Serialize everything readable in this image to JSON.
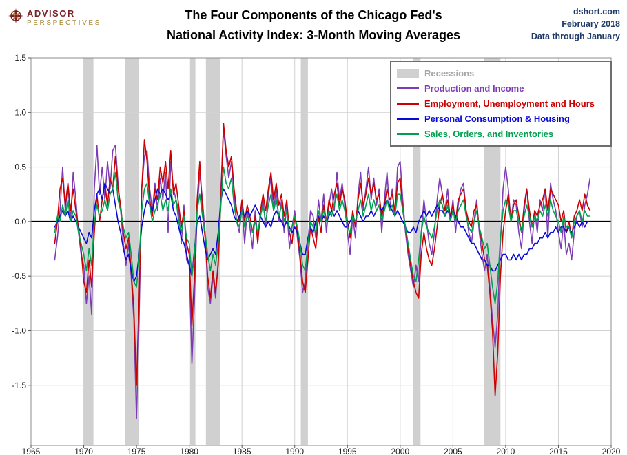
{
  "header": {
    "logo_line1": "ADVISOR",
    "logo_line2": "PERSPECTIVES",
    "title_line1": "The Four Components of the Chicago Fed's",
    "title_line2": "National Activity Index: 3-Month Moving Averages",
    "source": "dshort.com",
    "date": "February 2018",
    "note": "Data through January"
  },
  "colors": {
    "purple": "#7d3cb5",
    "red": "#cc0000",
    "blue": "#0a0ad8",
    "green": "#00a050",
    "recession": "#d0d0d0",
    "grid": "#d2d2d2",
    "axis_border": "#8c8c8c",
    "zero_line": "#000000",
    "header_blue": "#1f3a68",
    "legend_gray": "#a6a6a6",
    "logo_red": "#7a1f23",
    "logo_gold": "#a5873a"
  },
  "legend": {
    "recessions_label": "Recessions"
  },
  "chart_data": {
    "type": "line",
    "title": "The Four Components of the Chicago Fed's National Activity Index: 3-Month Moving Averages",
    "xlabel": "",
    "ylabel": "",
    "xlim": [
      1965,
      2020
    ],
    "ylim": [
      -2.05,
      1.5
    ],
    "x_ticks": [
      1965,
      1970,
      1975,
      1980,
      1985,
      1990,
      1995,
      2000,
      2005,
      2010,
      2015,
      2020
    ],
    "y_ticks": [
      1.5,
      1.0,
      0.5,
      0.0,
      -0.5,
      -1.0,
      -1.5
    ],
    "grid": true,
    "legend_position": "top-right",
    "x_start": 1967.25,
    "x_step": 0.25,
    "x_end": 2018.0,
    "recessions": [
      [
        1969.92,
        1970.92
      ],
      [
        1973.92,
        1975.25
      ],
      [
        1980.08,
        1980.58
      ],
      [
        1981.58,
        1982.92
      ],
      [
        1990.58,
        1991.25
      ],
      [
        2001.25,
        2001.92
      ],
      [
        2007.92,
        2009.5
      ]
    ],
    "series": [
      {
        "name": "Production and Income",
        "color": "#7d3cb5",
        "values": [
          -0.35,
          -0.15,
          0.1,
          0.5,
          0.1,
          0.35,
          0.0,
          0.45,
          0.2,
          -0.1,
          -0.3,
          -0.4,
          -0.75,
          -0.5,
          -0.85,
          0.3,
          0.7,
          0.25,
          0.5,
          0.2,
          0.55,
          0.3,
          0.65,
          0.7,
          0.35,
          0.1,
          -0.2,
          -0.4,
          -0.2,
          -0.5,
          -0.9,
          -1.8,
          -0.9,
          0.3,
          0.6,
          0.65,
          0.3,
          0.1,
          0.35,
          0.1,
          0.4,
          0.2,
          0.45,
          -0.1,
          0.55,
          0.3,
          0.2,
          0.1,
          -0.2,
          0.15,
          -0.35,
          -0.4,
          -1.3,
          -0.7,
          0.1,
          0.45,
          0.2,
          -0.1,
          -0.6,
          -0.75,
          -0.5,
          -0.7,
          -0.35,
          0.3,
          0.85,
          0.6,
          0.4,
          0.55,
          0.25,
          0.0,
          -0.1,
          0.15,
          -0.2,
          0.1,
          -0.05,
          -0.25,
          0.1,
          -0.15,
          0.05,
          0.2,
          -0.05,
          0.25,
          0.4,
          0.1,
          0.3,
          0.0,
          0.2,
          -0.1,
          0.15,
          -0.25,
          -0.05,
          0.1,
          -0.15,
          -0.35,
          -0.65,
          -0.55,
          -0.2,
          0.1,
          0.05,
          -0.15,
          0.2,
          0.0,
          0.25,
          -0.1,
          0.15,
          0.3,
          0.1,
          0.45,
          0.2,
          0.35,
          0.15,
          -0.1,
          -0.3,
          0.05,
          -0.15,
          0.25,
          0.45,
          0.1,
          0.3,
          0.5,
          0.2,
          0.4,
          0.15,
          0.3,
          -0.1,
          0.2,
          0.45,
          0.1,
          0.3,
          0.05,
          0.5,
          0.55,
          0.2,
          -0.1,
          -0.3,
          -0.45,
          -0.6,
          -0.4,
          -0.55,
          -0.1,
          0.2,
          0.0,
          -0.2,
          -0.3,
          -0.1,
          0.2,
          0.4,
          0.25,
          0.1,
          0.3,
          0.0,
          0.2,
          -0.1,
          0.15,
          0.3,
          0.35,
          0.1,
          -0.1,
          -0.2,
          0.0,
          0.2,
          -0.1,
          -0.3,
          -0.45,
          -0.3,
          -0.6,
          -0.9,
          -1.15,
          -0.85,
          -0.2,
          0.3,
          0.5,
          0.3,
          0.0,
          0.2,
          0.15,
          -0.1,
          -0.25,
          0.1,
          0.3,
          0.0,
          -0.2,
          0.1,
          -0.1,
          0.2,
          0.1,
          0.3,
          -0.15,
          0.35,
          0.2,
          0.1,
          -0.1,
          -0.25,
          0.0,
          -0.3,
          -0.2,
          -0.35,
          -0.1,
          0.05,
          0.1,
          -0.05,
          0.15,
          0.25,
          0.4
        ]
      },
      {
        "name": "Employment, Unemployment and Hours",
        "color": "#cc0000",
        "values": [
          -0.2,
          0.0,
          0.3,
          0.4,
          0.15,
          0.35,
          0.1,
          0.3,
          0.1,
          -0.05,
          -0.25,
          -0.55,
          -0.65,
          -0.35,
          -0.6,
          -0.1,
          0.25,
          0.0,
          0.2,
          0.35,
          0.15,
          0.4,
          0.3,
          0.6,
          0.3,
          0.15,
          -0.1,
          -0.25,
          -0.15,
          -0.45,
          -0.8,
          -1.5,
          -0.7,
          0.3,
          0.75,
          0.55,
          0.2,
          0.05,
          0.3,
          0.2,
          0.5,
          0.35,
          0.55,
          0.3,
          0.65,
          0.25,
          0.35,
          0.15,
          -0.05,
          0.1,
          -0.2,
          -0.3,
          -0.95,
          -0.5,
          0.2,
          0.55,
          0.1,
          -0.15,
          -0.5,
          -0.7,
          -0.45,
          -0.65,
          -0.4,
          0.2,
          0.9,
          0.65,
          0.5,
          0.6,
          0.3,
          0.1,
          0.0,
          0.2,
          0.0,
          0.15,
          0.05,
          -0.1,
          0.05,
          -0.2,
          0.1,
          0.25,
          0.1,
          0.3,
          0.45,
          0.2,
          0.35,
          0.15,
          0.25,
          0.05,
          0.2,
          -0.1,
          -0.2,
          0.05,
          -0.1,
          -0.3,
          -0.55,
          -0.65,
          -0.35,
          -0.05,
          -0.15,
          -0.25,
          0.05,
          -0.1,
          0.15,
          0.0,
          0.2,
          0.1,
          0.25,
          0.35,
          0.15,
          0.3,
          0.2,
          0.0,
          -0.15,
          0.1,
          -0.05,
          0.2,
          0.35,
          0.15,
          0.25,
          0.4,
          0.25,
          0.35,
          0.2,
          0.25,
          0.05,
          0.15,
          0.3,
          0.2,
          0.25,
          0.1,
          0.35,
          0.4,
          0.1,
          -0.05,
          -0.25,
          -0.4,
          -0.55,
          -0.65,
          -0.7,
          -0.3,
          -0.1,
          -0.25,
          -0.35,
          -0.4,
          -0.25,
          -0.05,
          0.15,
          0.25,
          0.1,
          0.2,
          0.05,
          0.15,
          0.0,
          0.2,
          0.25,
          0.3,
          0.1,
          0.0,
          -0.05,
          0.1,
          0.15,
          -0.05,
          -0.2,
          -0.35,
          -0.4,
          -0.65,
          -1.0,
          -1.6,
          -1.2,
          -0.5,
          -0.1,
          0.1,
          0.25,
          0.0,
          0.15,
          0.2,
          0.05,
          -0.1,
          0.15,
          0.3,
          0.1,
          -0.05,
          0.1,
          0.05,
          0.15,
          0.2,
          0.3,
          0.1,
          0.3,
          0.25,
          0.2,
          0.15,
          0.0,
          0.1,
          -0.1,
          0.0,
          -0.15,
          0.05,
          0.1,
          0.2,
          0.1,
          0.25,
          0.15,
          0.1
        ]
      },
      {
        "name": "Personal Consumption & Housing",
        "color": "#0a0ad8",
        "values": [
          -0.05,
          0.0,
          0.05,
          0.1,
          0.05,
          0.1,
          0.0,
          0.05,
          0.0,
          -0.05,
          -0.1,
          -0.15,
          -0.2,
          -0.1,
          -0.15,
          0.1,
          0.25,
          0.3,
          0.2,
          0.35,
          0.3,
          0.25,
          0.3,
          0.15,
          0.0,
          -0.1,
          -0.25,
          -0.35,
          -0.3,
          -0.45,
          -0.55,
          -0.5,
          -0.3,
          -0.05,
          0.1,
          0.2,
          0.15,
          0.1,
          0.2,
          0.3,
          0.25,
          0.3,
          0.25,
          0.2,
          0.25,
          0.1,
          0.05,
          -0.05,
          -0.15,
          -0.2,
          -0.3,
          -0.4,
          -0.5,
          -0.25,
          0.0,
          0.05,
          -0.1,
          -0.25,
          -0.35,
          -0.3,
          -0.25,
          -0.3,
          -0.1,
          0.2,
          0.3,
          0.25,
          0.2,
          0.15,
          0.05,
          0.0,
          0.05,
          0.1,
          0.05,
          0.1,
          0.05,
          0.1,
          0.15,
          0.1,
          0.05,
          0.0,
          -0.05,
          0.0,
          -0.05,
          0.05,
          0.1,
          0.05,
          0.0,
          -0.05,
          0.0,
          -0.05,
          -0.1,
          -0.05,
          -0.1,
          -0.2,
          -0.3,
          -0.3,
          -0.15,
          -0.05,
          -0.1,
          0.0,
          0.05,
          0.0,
          0.05,
          0.0,
          0.05,
          0.1,
          0.05,
          0.1,
          0.05,
          0.0,
          -0.05,
          -0.05,
          0.0,
          0.05,
          0.0,
          0.1,
          0.05,
          0.0,
          0.05,
          0.05,
          0.1,
          0.05,
          0.1,
          0.15,
          0.1,
          0.15,
          0.2,
          0.15,
          0.1,
          0.05,
          0.1,
          0.05,
          0.0,
          -0.05,
          -0.1,
          -0.1,
          -0.05,
          -0.1,
          0.0,
          0.05,
          0.1,
          0.05,
          0.1,
          0.05,
          0.1,
          0.15,
          0.1,
          0.1,
          0.05,
          0.1,
          0.05,
          0.1,
          0.05,
          0.0,
          -0.05,
          -0.05,
          -0.1,
          -0.15,
          -0.2,
          -0.2,
          -0.25,
          -0.3,
          -0.35,
          -0.35,
          -0.4,
          -0.4,
          -0.45,
          -0.45,
          -0.4,
          -0.35,
          -0.3,
          -0.3,
          -0.35,
          -0.35,
          -0.3,
          -0.35,
          -0.3,
          -0.35,
          -0.3,
          -0.3,
          -0.25,
          -0.25,
          -0.2,
          -0.2,
          -0.15,
          -0.15,
          -0.1,
          -0.15,
          -0.1,
          -0.1,
          -0.05,
          -0.1,
          -0.05,
          -0.05,
          -0.1,
          -0.05,
          -0.1,
          -0.05,
          0.0,
          -0.05,
          0.0,
          -0.05,
          0.0,
          0.0
        ]
      },
      {
        "name": "Sales, Orders, and Inventories",
        "color": "#00a050",
        "values": [
          -0.1,
          0.05,
          0.0,
          0.15,
          0.05,
          0.2,
          0.0,
          0.1,
          0.05,
          -0.1,
          -0.2,
          -0.3,
          -0.45,
          -0.25,
          -0.4,
          0.0,
          0.15,
          0.05,
          0.1,
          0.2,
          0.1,
          0.25,
          0.3,
          0.45,
          0.2,
          0.1,
          -0.05,
          -0.15,
          -0.1,
          -0.3,
          -0.55,
          -0.6,
          -0.35,
          0.1,
          0.3,
          0.35,
          0.15,
          0.0,
          0.1,
          0.15,
          0.25,
          0.1,
          0.2,
          0.1,
          0.3,
          0.15,
          0.2,
          0.0,
          -0.1,
          0.05,
          -0.15,
          -0.2,
          -0.5,
          -0.3,
          0.1,
          0.25,
          0.05,
          -0.1,
          -0.3,
          -0.45,
          -0.3,
          -0.4,
          -0.2,
          0.15,
          0.5,
          0.35,
          0.3,
          0.4,
          0.15,
          0.0,
          -0.05,
          0.1,
          -0.05,
          0.05,
          0.0,
          -0.1,
          0.0,
          -0.1,
          0.05,
          0.15,
          0.0,
          0.15,
          0.25,
          0.1,
          0.2,
          0.05,
          0.15,
          0.0,
          0.1,
          -0.1,
          -0.05,
          0.05,
          -0.05,
          -0.2,
          -0.4,
          -0.45,
          -0.2,
          0.0,
          -0.05,
          -0.1,
          0.1,
          0.0,
          0.1,
          0.0,
          0.1,
          0.05,
          0.15,
          0.25,
          0.1,
          0.2,
          0.1,
          -0.05,
          -0.1,
          0.05,
          0.0,
          0.1,
          0.2,
          0.05,
          0.15,
          0.25,
          0.1,
          0.2,
          0.1,
          0.15,
          0.0,
          0.1,
          0.2,
          0.1,
          0.15,
          0.05,
          0.25,
          0.25,
          0.1,
          -0.05,
          -0.2,
          -0.35,
          -0.5,
          -0.55,
          -0.35,
          -0.1,
          0.05,
          -0.05,
          -0.1,
          -0.15,
          -0.05,
          0.1,
          0.2,
          0.15,
          0.05,
          0.15,
          0.0,
          0.1,
          0.0,
          0.1,
          0.15,
          0.2,
          0.05,
          -0.05,
          -0.1,
          0.0,
          0.1,
          -0.05,
          -0.15,
          -0.25,
          -0.2,
          -0.4,
          -0.6,
          -0.75,
          -0.55,
          -0.15,
          0.1,
          0.2,
          0.15,
          0.0,
          0.1,
          0.1,
          0.0,
          -0.1,
          0.05,
          0.15,
          0.05,
          -0.05,
          0.05,
          0.0,
          0.1,
          0.05,
          0.15,
          0.05,
          0.2,
          0.1,
          0.05,
          0.0,
          -0.1,
          0.05,
          -0.05,
          -0.05,
          -0.15,
          0.0,
          0.05,
          0.1,
          0.0,
          0.1,
          0.05,
          0.05
        ]
      }
    ]
  }
}
